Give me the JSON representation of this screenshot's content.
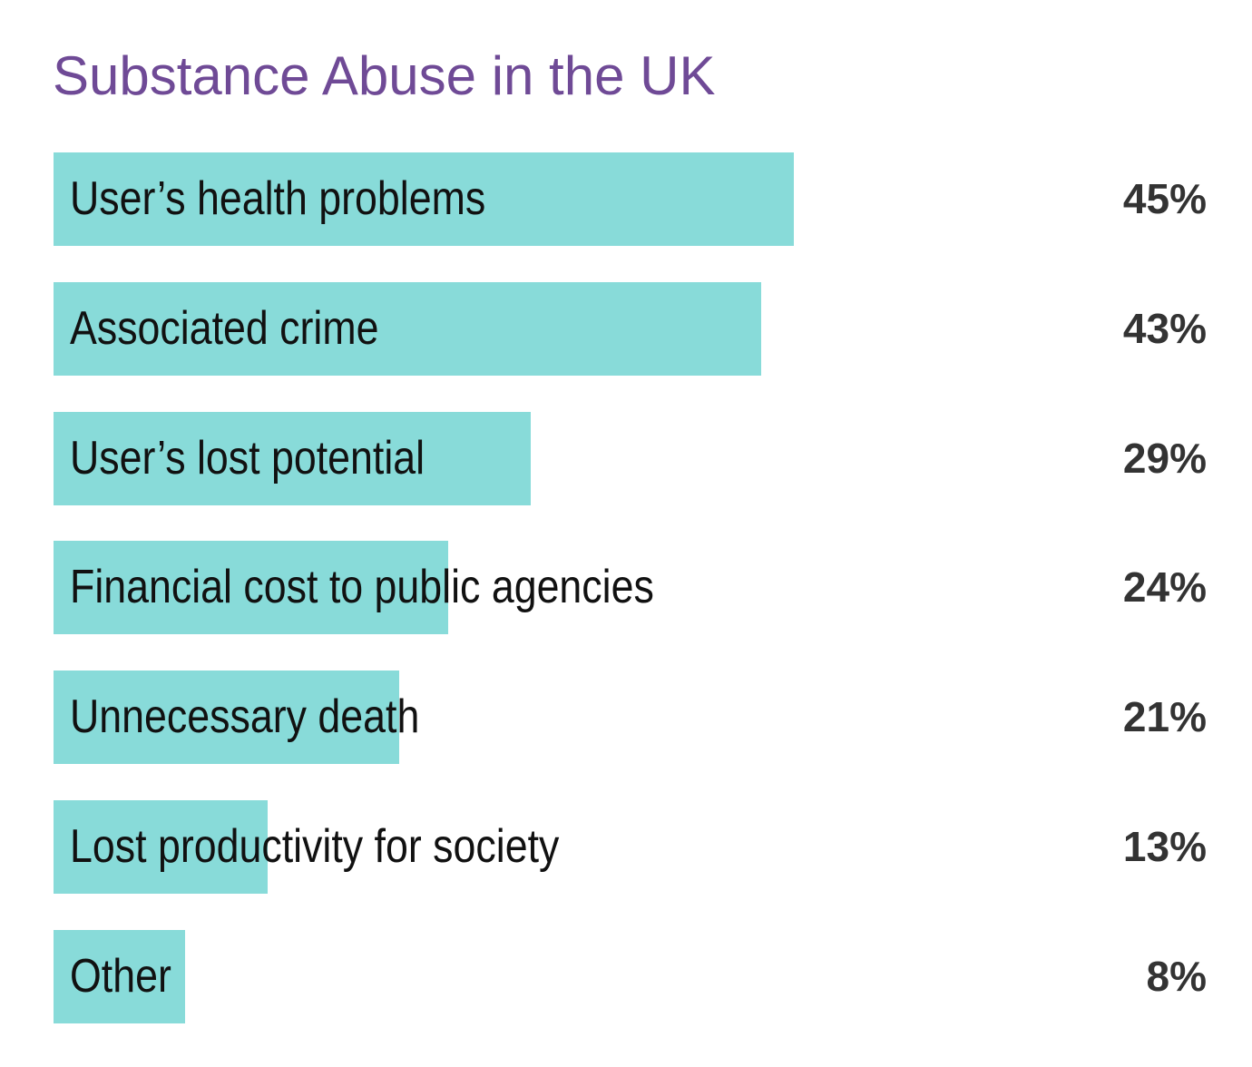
{
  "chart_data": {
    "type": "bar",
    "orientation": "horizontal",
    "title": "Substance Abuse in the UK",
    "categories": [
      "User’s health problems",
      "Associated crime",
      "User’s lost potential",
      "Financial cost to public agencies",
      "Unnecessary death",
      "Lost productivity for society",
      "Other"
    ],
    "values": [
      45,
      43,
      29,
      24,
      21,
      13,
      8
    ],
    "value_labels": [
      "45%",
      "43%",
      "29%",
      "24%",
      "21%",
      "13%",
      "8%"
    ],
    "unit": "%",
    "xlim": [
      0,
      45
    ],
    "grid": false,
    "legend": "none",
    "colors": {
      "bar": "#88dbd9",
      "title": "#6f4a96",
      "label": "#111111",
      "value": "#333333"
    }
  }
}
